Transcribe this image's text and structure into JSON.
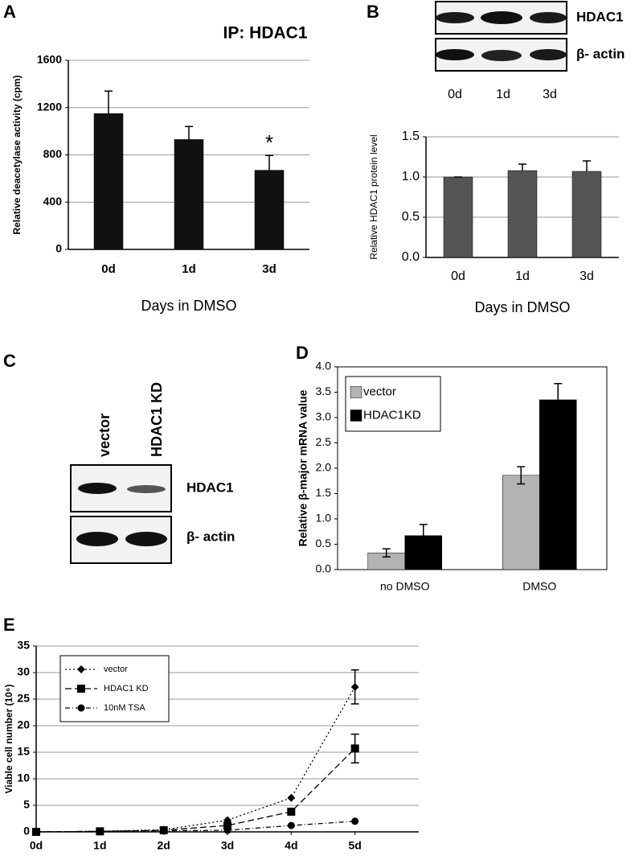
{
  "chart_data": [
    {
      "type": "bar",
      "panel": "A",
      "title": "IP: HDAC1",
      "ylabel": "Relative deacetylase activity (cpm)",
      "xlabel": "Days in DMSO",
      "categories": [
        "0d",
        "1d",
        "3d"
      ],
      "series": [
        {
          "color": "#111111",
          "values": [
            1150,
            930,
            670
          ],
          "errors": [
            190,
            110,
            125
          ]
        }
      ],
      "error_direction": "up",
      "annotation": "*",
      "ylim": [
        0,
        1600
      ],
      "yticks": [
        0,
        400,
        800,
        1200,
        1600
      ],
      "grid": true
    },
    {
      "type": "bar",
      "ylabel": "Relative HDAC1 protein level",
      "xlabel": "Days in DMSO",
      "categories": [
        "0d",
        "1d",
        "3d"
      ],
      "series": [
        {
          "color": "#555555",
          "values": [
            1.0,
            1.08,
            1.07
          ],
          "errors": [
            0.0,
            0.08,
            0.13
          ]
        }
      ],
      "error_direction": "up",
      "ylim": [
        0,
        1.5
      ],
      "yticks": [
        {
          "value": 0,
          "label": "0.0"
        },
        {
          "value": 0.5,
          "label": "0.5"
        },
        {
          "value": 1,
          "label": "1.0"
        },
        {
          "value": 1.5,
          "label": "1.5"
        }
      ],
      "grid": true
    },
    {
      "type": "bar",
      "panel": "D",
      "ylabel": "Relative β-major mRNA value",
      "categories": [
        "no DMSO",
        "DMSO"
      ],
      "series": [
        {
          "name": "vector",
          "color": "#b3b3b3",
          "values": [
            0.33,
            1.86
          ],
          "errors": [
            0.08,
            0.17
          ]
        },
        {
          "name": "HDAC1KD",
          "color": "#000000",
          "values": [
            0.67,
            3.35
          ],
          "errors": [
            0.22,
            0.32
          ]
        }
      ],
      "error_direction": "both",
      "legend": "upper-left",
      "frame": true,
      "ylim": [
        0,
        4
      ],
      "yticks": [
        {
          "value": 0,
          "label": "0.0"
        },
        0.5,
        {
          "value": 1,
          "label": "1.0"
        },
        1.5,
        {
          "value": 2,
          "label": "2.0"
        },
        2.5,
        {
          "value": 3,
          "label": "3.0"
        },
        3.5,
        {
          "value": 4,
          "label": "4.0"
        }
      ],
      "grid": false
    },
    {
      "type": "line",
      "panel": "E",
      "ylabel": "Viable cell number (10⁶)",
      "categories": [
        "0d",
        "1d",
        "2d",
        "3d",
        "4d",
        "5d"
      ],
      "series": [
        {
          "name": "vector",
          "color": "#000000",
          "dash": "2,3",
          "marker": "diamond",
          "values": [
            0,
            0.1,
            0.4,
            2.2,
            6.4,
            27.3
          ],
          "errors": [
            null,
            null,
            null,
            null,
            null,
            3.2
          ]
        },
        {
          "name": "HDAC1 KD",
          "color": "#000000",
          "dash": "8,4",
          "marker": "square",
          "values": [
            0,
            0.1,
            0.3,
            1.2,
            3.8,
            15.7
          ],
          "errors": [
            null,
            null,
            null,
            null,
            null,
            2.7
          ]
        },
        {
          "name": "10nM TSA",
          "color": "#000000",
          "dash": "6,3,1,3",
          "marker": "circle",
          "values": [
            0,
            0.1,
            0.2,
            0.3,
            1.2,
            2.0
          ],
          "errors": [
            null,
            null,
            null,
            null,
            null,
            null
          ]
        }
      ],
      "legend": "upper-left",
      "ylim": [
        0,
        35
      ],
      "yticks": [
        0,
        5,
        10,
        15,
        20,
        25,
        30,
        35
      ],
      "grid": true
    }
  ],
  "blots": [
    {
      "panel": "B",
      "lanes": [
        "0d",
        "1d",
        "3d"
      ],
      "rows": [
        "HDAC1",
        "β- actin"
      ]
    },
    {
      "panel": "C",
      "lanes": [
        "vector",
        "HDAC1 KD"
      ],
      "rows": [
        "HDAC1",
        "β- actin"
      ]
    }
  ]
}
